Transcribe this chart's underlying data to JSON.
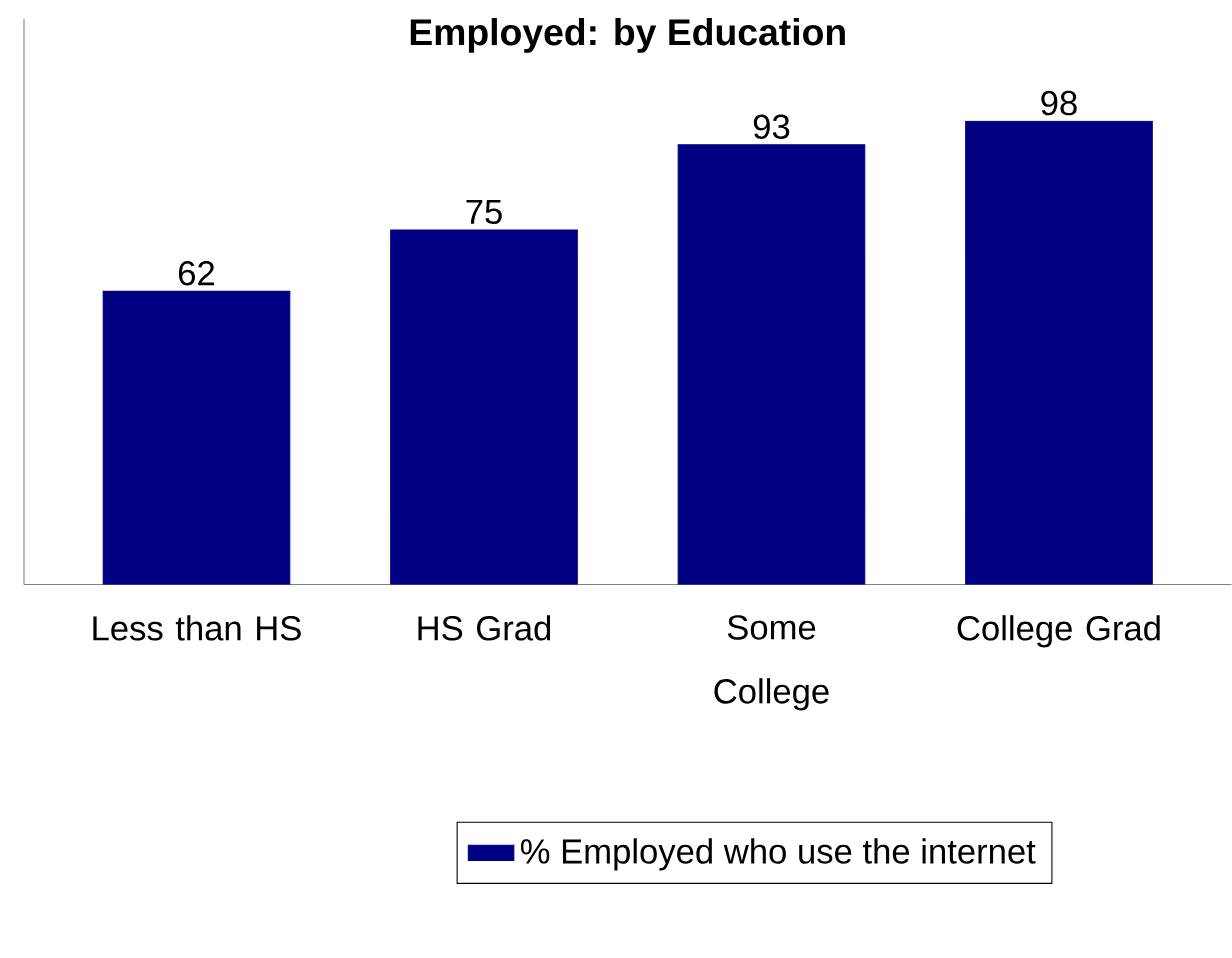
{
  "chart_data": {
    "type": "bar",
    "title": "Employed: by Education",
    "categories": [
      "Less than HS",
      "HS Grad",
      "Some College",
      "College Grad"
    ],
    "series": [
      {
        "name": "% Employed who use the internet",
        "color": "#000080",
        "values": [
          62,
          75,
          93,
          98
        ]
      }
    ],
    "data_labels": true,
    "legend": "bottom"
  }
}
